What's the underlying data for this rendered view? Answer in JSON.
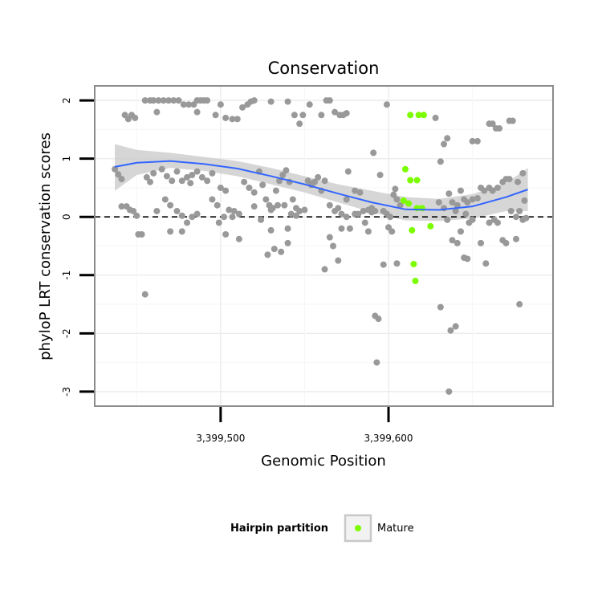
{
  "chart_data": {
    "type": "scatter",
    "title": "Conservation",
    "xlabel": "Genomic Position",
    "ylabel": "phyloP LRT conservation scores",
    "xlim": [
      3399425,
      3399698
    ],
    "ylim": [
      -3.25,
      2.25
    ],
    "x_ticks": [
      3399500,
      3399600
    ],
    "x_tick_labels": [
      "3,399,500",
      "3,399,600"
    ],
    "y_ticks": [
      -3,
      -2,
      -1,
      0,
      1,
      2
    ],
    "y_tick_labels": [
      "-3",
      "-2",
      "-1",
      "0",
      "1",
      "2"
    ],
    "grid": true,
    "reference_line": {
      "y": 0,
      "style": "dashed"
    },
    "legend": {
      "title": "Hairpin partition",
      "position": "bottom",
      "entries": [
        {
          "label": "Mature",
          "color": "#7cfc00"
        }
      ]
    },
    "colors": {
      "other": "#999999",
      "mature": "#7cfc00",
      "smooth": "#3366ff",
      "band": "#cccccc"
    },
    "smooth_curve": {
      "x": [
        3399437,
        3399450,
        3399470,
        3399490,
        3399510,
        3399530,
        3399550,
        3399570,
        3399590,
        3399610,
        3399630,
        3399650,
        3399670,
        3399683
      ],
      "y": [
        0.86,
        0.93,
        0.96,
        0.91,
        0.83,
        0.7,
        0.56,
        0.4,
        0.25,
        0.13,
        0.12,
        0.18,
        0.34,
        0.47
      ],
      "upper": [
        1.25,
        1.15,
        1.1,
        1.03,
        0.96,
        0.84,
        0.7,
        0.56,
        0.45,
        0.34,
        0.31,
        0.39,
        0.58,
        0.84
      ],
      "lower": [
        0.45,
        0.72,
        0.84,
        0.79,
        0.7,
        0.56,
        0.42,
        0.25,
        0.08,
        -0.06,
        -0.07,
        -0.03,
        0.1,
        0.1
      ]
    },
    "series": [
      {
        "name": "Mature",
        "color": "#7cfc00",
        "points": [
          [
            3399610,
            0.82
          ],
          [
            3399613,
            0.63
          ],
          [
            3399617,
            0.63
          ],
          [
            3399609,
            0.28
          ],
          [
            3399612,
            0.23
          ],
          [
            3399617,
            0.15
          ],
          [
            3399620,
            0.15
          ],
          [
            3399613,
            1.75
          ],
          [
            3399618,
            1.75
          ],
          [
            3399621,
            1.75
          ],
          [
            3399614,
            -0.23
          ],
          [
            3399625,
            -0.16
          ],
          [
            3399615,
            -0.81
          ],
          [
            3399616,
            -1.1
          ]
        ]
      },
      {
        "color": "#999999",
        "points": [
          [
            3399437,
            0.82
          ],
          [
            3399439,
            0.73
          ],
          [
            3399441,
            0.65
          ],
          [
            3399441,
            0.18
          ],
          [
            3399444,
            0.18
          ],
          [
            3399446,
            0.12
          ],
          [
            3399448,
            0.1
          ],
          [
            3399450,
            0.02
          ],
          [
            3399451,
            -0.3
          ],
          [
            3399453,
            -0.3
          ],
          [
            3399456,
            0.68
          ],
          [
            3399458,
            0.6
          ],
          [
            3399460,
            0.75
          ],
          [
            3399462,
            0.1
          ],
          [
            3399455,
            -1.33
          ],
          [
            3399443,
            1.75
          ],
          [
            3399445,
            1.68
          ],
          [
            3399447,
            1.75
          ],
          [
            3399449,
            1.7
          ],
          [
            3399455,
            2.0
          ],
          [
            3399458,
            2.0
          ],
          [
            3399460,
            2.0
          ],
          [
            3399463,
            2.0
          ],
          [
            3399466,
            2.0
          ],
          [
            3399469,
            2.0
          ],
          [
            3399472,
            2.0
          ],
          [
            3399475,
            2.0
          ],
          [
            3399478,
            1.93
          ],
          [
            3399481,
            1.93
          ],
          [
            3399486,
            2.0
          ],
          [
            3399488,
            2.0
          ],
          [
            3399490,
            2.0
          ],
          [
            3399492,
            2.0
          ],
          [
            3399484,
            1.93
          ],
          [
            3399486,
            1.8
          ],
          [
            3399462,
            1.8
          ],
          [
            3399465,
            0.82
          ],
          [
            3399468,
            0.7
          ],
          [
            3399471,
            0.62
          ],
          [
            3399474,
            0.78
          ],
          [
            3399477,
            0.62
          ],
          [
            3399480,
            0.68
          ],
          [
            3399483,
            0.72
          ],
          [
            3399486,
            0.78
          ],
          [
            3399489,
            0.68
          ],
          [
            3399492,
            0.62
          ],
          [
            3399495,
            0.75
          ],
          [
            3399467,
            0.3
          ],
          [
            3399470,
            0.2
          ],
          [
            3399474,
            0.1
          ],
          [
            3399477,
            0.02
          ],
          [
            3399480,
            -0.1
          ],
          [
            3399483,
            0.0
          ],
          [
            3399486,
            0.05
          ],
          [
            3399470,
            -0.25
          ],
          [
            3399477,
            -0.25
          ],
          [
            3399482,
            0.58
          ],
          [
            3399495,
            0.3
          ],
          [
            3399498,
            0.2
          ],
          [
            3399500,
            0.5
          ],
          [
            3399503,
            0.45
          ],
          [
            3399505,
            0.12
          ],
          [
            3399508,
            0.1
          ],
          [
            3399511,
            0.05
          ],
          [
            3399514,
            0.6
          ],
          [
            3399517,
            0.5
          ],
          [
            3399520,
            0.42
          ],
          [
            3399497,
            1.75
          ],
          [
            3399500,
            1.93
          ],
          [
            3399503,
            1.7
          ],
          [
            3399507,
            1.68
          ],
          [
            3399510,
            1.68
          ],
          [
            3399513,
            1.88
          ],
          [
            3399516,
            1.93
          ],
          [
            3399518,
            1.98
          ],
          [
            3399520,
            2.0
          ],
          [
            3399499,
            -0.1
          ],
          [
            3399503,
            -0.3
          ],
          [
            3399507,
            0.0
          ],
          [
            3399511,
            -0.38
          ],
          [
            3399502,
            0.0
          ],
          [
            3399523,
            0.78
          ],
          [
            3399525,
            0.55
          ],
          [
            3399527,
            0.3
          ],
          [
            3399529,
            0.2
          ],
          [
            3399531,
            0.15
          ],
          [
            3399533,
            0.45
          ],
          [
            3399535,
            0.62
          ],
          [
            3399537,
            0.72
          ],
          [
            3399539,
            0.8
          ],
          [
            3399541,
            0.6
          ],
          [
            3399543,
            0.3
          ],
          [
            3399545,
            0.15
          ],
          [
            3399547,
            0.1
          ],
          [
            3399550,
            0.12
          ],
          [
            3399552,
            0.62
          ],
          [
            3399554,
            0.55
          ],
          [
            3399556,
            0.6
          ],
          [
            3399558,
            0.68
          ],
          [
            3399530,
            0.12
          ],
          [
            3399534,
            0.2
          ],
          [
            3399538,
            0.2
          ],
          [
            3399542,
            0.05
          ],
          [
            3399545,
            0.02
          ],
          [
            3399520,
            0.18
          ],
          [
            3399528,
            -0.65
          ],
          [
            3399532,
            -0.55
          ],
          [
            3399536,
            -0.6
          ],
          [
            3399540,
            -0.45
          ],
          [
            3399524,
            -0.05
          ],
          [
            3399530,
            -0.23
          ],
          [
            3399540,
            -0.2
          ],
          [
            3399530,
            1.98
          ],
          [
            3399540,
            1.98
          ],
          [
            3399544,
            1.75
          ],
          [
            3399547,
            1.6
          ],
          [
            3399549,
            1.75
          ],
          [
            3399553,
            1.93
          ],
          [
            3399560,
            1.75
          ],
          [
            3399563,
            2.0
          ],
          [
            3399565,
            2.0
          ],
          [
            3399568,
            1.8
          ],
          [
            3399571,
            1.75
          ],
          [
            3399573,
            1.75
          ],
          [
            3399575,
            1.78
          ],
          [
            3399555,
            0.58
          ],
          [
            3399560,
            0.45
          ],
          [
            3399562,
            0.62
          ],
          [
            3399565,
            0.2
          ],
          [
            3399568,
            0.1
          ],
          [
            3399570,
            0.15
          ],
          [
            3399572,
            0.05
          ],
          [
            3399575,
            0.3
          ],
          [
            3399576,
            0.78
          ],
          [
            3399580,
            0.45
          ],
          [
            3399583,
            0.42
          ],
          [
            3399585,
            0.1
          ],
          [
            3399588,
            0.12
          ],
          [
            3399590,
            0.15
          ],
          [
            3399592,
            0.1
          ],
          [
            3399562,
            -0.9
          ],
          [
            3399565,
            -0.35
          ],
          [
            3399567,
            -0.5
          ],
          [
            3399570,
            -0.75
          ],
          [
            3399572,
            -0.2
          ],
          [
            3399575,
            0.0
          ],
          [
            3399577,
            -0.2
          ],
          [
            3399580,
            0.05
          ],
          [
            3399582,
            0.05
          ],
          [
            3399586,
            -0.1
          ],
          [
            3399588,
            -0.25
          ],
          [
            3399590,
            0.08
          ],
          [
            3399591,
            1.1
          ],
          [
            3399595,
            0.72
          ],
          [
            3399597,
            0.1
          ],
          [
            3399599,
            0.05
          ],
          [
            3399601,
            0.0
          ],
          [
            3399603,
            0.38
          ],
          [
            3399604,
            0.48
          ],
          [
            3399605,
            0.3
          ],
          [
            3399607,
            0.2
          ],
          [
            3399592,
            -1.7
          ],
          [
            3399594,
            -1.75
          ],
          [
            3399593,
            -2.5
          ],
          [
            3399597,
            -0.82
          ],
          [
            3399600,
            -0.18
          ],
          [
            3399602,
            -0.25
          ],
          [
            3399605,
            -0.8
          ],
          [
            3399599,
            1.93
          ],
          [
            3399628,
            1.7
          ],
          [
            3399631,
            0.95
          ],
          [
            3399633,
            1.25
          ],
          [
            3399635,
            1.35
          ],
          [
            3399630,
            0.25
          ],
          [
            3399633,
            0.15
          ],
          [
            3399636,
            0.4
          ],
          [
            3399638,
            0.25
          ],
          [
            3399640,
            0.1
          ],
          [
            3399631,
            -1.55
          ],
          [
            3399637,
            -1.95
          ],
          [
            3399640,
            -1.88
          ],
          [
            3399636,
            -3.0
          ],
          [
            3399638,
            -0.4
          ],
          [
            3399641,
            -0.45
          ],
          [
            3399643,
            -0.25
          ],
          [
            3399645,
            -0.7
          ],
          [
            3399647,
            -0.72
          ],
          [
            3399635,
            -0.05
          ],
          [
            3399641,
            0.2
          ],
          [
            3399643,
            0.45
          ],
          [
            3399645,
            0.3
          ],
          [
            3399647,
            0.25
          ],
          [
            3399650,
            0.3
          ],
          [
            3399653,
            0.32
          ],
          [
            3399655,
            0.5
          ],
          [
            3399657,
            0.45
          ],
          [
            3399660,
            0.5
          ],
          [
            3399662,
            0.45
          ],
          [
            3399665,
            0.5
          ],
          [
            3399668,
            0.6
          ],
          [
            3399670,
            0.65
          ],
          [
            3399672,
            0.65
          ],
          [
            3399650,
            1.3
          ],
          [
            3399653,
            1.3
          ],
          [
            3399660,
            1.6
          ],
          [
            3399662,
            1.6
          ],
          [
            3399664,
            1.52
          ],
          [
            3399666,
            1.52
          ],
          [
            3399672,
            1.65
          ],
          [
            3399674,
            1.65
          ],
          [
            3399650,
            -0.05
          ],
          [
            3399655,
            -0.45
          ],
          [
            3399658,
            -0.8
          ],
          [
            3399660,
            -0.1
          ],
          [
            3399663,
            -0.05
          ],
          [
            3399665,
            -0.1
          ],
          [
            3399668,
            -0.4
          ],
          [
            3399670,
            -0.45
          ],
          [
            3399673,
            0.1
          ],
          [
            3399676,
            0.0
          ],
          [
            3399678,
            0.1
          ],
          [
            3399680,
            -0.05
          ],
          [
            3399676,
            -0.38
          ],
          [
            3399678,
            -1.5
          ],
          [
            3399677,
            0.6
          ],
          [
            3399680,
            0.75
          ],
          [
            3399681,
            0.28
          ],
          [
            3399682,
            -0.02
          ],
          [
            3399646,
            0.05
          ],
          [
            3399648,
            -0.1
          ]
        ]
      }
    ]
  }
}
